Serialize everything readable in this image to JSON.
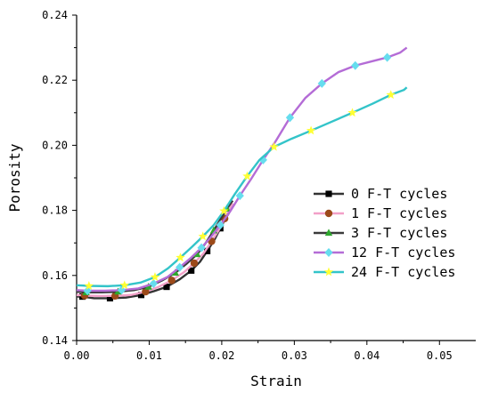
{
  "chart_data": {
    "type": "line",
    "xlabel": "Strain",
    "ylabel": "Porosity",
    "xlim": [
      0.0,
      0.055
    ],
    "ylim": [
      0.14,
      0.24
    ],
    "xticks": [
      "0.00",
      "0.01",
      "0.02",
      "0.03",
      "0.04",
      "0.05"
    ],
    "yticks": [
      "0.14",
      "0.16",
      "0.18",
      "0.20",
      "0.22",
      "0.24"
    ],
    "grid": false,
    "legend_position": "right",
    "series": [
      {
        "name": "0 F-T cycles",
        "color": "#000000",
        "line_color": "#333333",
        "marker": "square",
        "x": [
          0.0,
          0.0008,
          0.0024,
          0.0046,
          0.0068,
          0.0089,
          0.0107,
          0.0124,
          0.0142,
          0.0158,
          0.017,
          0.018,
          0.019,
          0.0198,
          0.0205,
          0.021
        ],
        "y": [
          0.1535,
          0.1535,
          0.153,
          0.153,
          0.1532,
          0.154,
          0.1552,
          0.1565,
          0.1588,
          0.1615,
          0.1642,
          0.1675,
          0.171,
          0.1745,
          0.1775,
          0.1792
        ]
      },
      {
        "name": "1 F-T cycles",
        "color": "#9c4a1a",
        "line_color": "#f2a0c8",
        "marker": "circle",
        "x": [
          0.0,
          0.0011,
          0.0031,
          0.0053,
          0.0075,
          0.0095,
          0.0113,
          0.0131,
          0.0148,
          0.0162,
          0.0175,
          0.0186,
          0.0196,
          0.0204,
          0.021,
          0.0215
        ],
        "y": [
          0.154,
          0.1538,
          0.1537,
          0.1537,
          0.154,
          0.155,
          0.1565,
          0.1585,
          0.161,
          0.1638,
          0.1668,
          0.1705,
          0.174,
          0.1775,
          0.18,
          0.1822
        ]
      },
      {
        "name": "3 F-T cycles",
        "color": "#2ea82e",
        "line_color": "#3a3a3a",
        "marker": "triangle",
        "x": [
          0.0,
          0.0013,
          0.0035,
          0.0057,
          0.0079,
          0.0099,
          0.0118,
          0.0136,
          0.0151,
          0.0166,
          0.0178,
          0.0189,
          0.0198,
          0.0207,
          0.0215
        ],
        "y": [
          0.155,
          0.1548,
          0.1548,
          0.155,
          0.1555,
          0.1565,
          0.1585,
          0.1608,
          0.1635,
          0.1665,
          0.17,
          0.1738,
          0.1772,
          0.1805,
          0.183
        ]
      },
      {
        "name": "12 F-T cycles",
        "color": "#66ddee",
        "line_color": "#b46cd6",
        "marker": "diamond",
        "x": [
          0.0,
          0.0015,
          0.0039,
          0.0062,
          0.0085,
          0.0106,
          0.0125,
          0.0142,
          0.0158,
          0.0172,
          0.0185,
          0.0198,
          0.0211,
          0.0225,
          0.024,
          0.0257,
          0.0275,
          0.0294,
          0.0315,
          0.0338,
          0.0361,
          0.0384,
          0.0407,
          0.0428,
          0.0446,
          0.0455
        ],
        "y": [
          0.1555,
          0.1553,
          0.1553,
          0.1555,
          0.156,
          0.1575,
          0.1595,
          0.1625,
          0.1655,
          0.1685,
          0.1718,
          0.1755,
          0.1795,
          0.1845,
          0.1895,
          0.1955,
          0.2015,
          0.2085,
          0.2145,
          0.219,
          0.2225,
          0.2245,
          0.2258,
          0.227,
          0.2285,
          0.23
        ]
      },
      {
        "name": "24 F-T cycles",
        "color": "#ffff33",
        "line_color": "#33c4c9",
        "marker": "star",
        "x": [
          0.0,
          0.0017,
          0.0043,
          0.0066,
          0.0088,
          0.0108,
          0.0126,
          0.0143,
          0.0159,
          0.0174,
          0.0189,
          0.0203,
          0.0218,
          0.0235,
          0.0252,
          0.0272,
          0.0296,
          0.0323,
          0.0351,
          0.038,
          0.0408,
          0.0433,
          0.0451,
          0.0455
        ],
        "y": [
          0.157,
          0.1568,
          0.1567,
          0.157,
          0.1578,
          0.1595,
          0.1622,
          0.1655,
          0.1688,
          0.172,
          0.1755,
          0.1798,
          0.185,
          0.1905,
          0.1955,
          0.1995,
          0.202,
          0.2045,
          0.2072,
          0.21,
          0.2128,
          0.2155,
          0.217,
          0.2178
        ]
      }
    ]
  }
}
